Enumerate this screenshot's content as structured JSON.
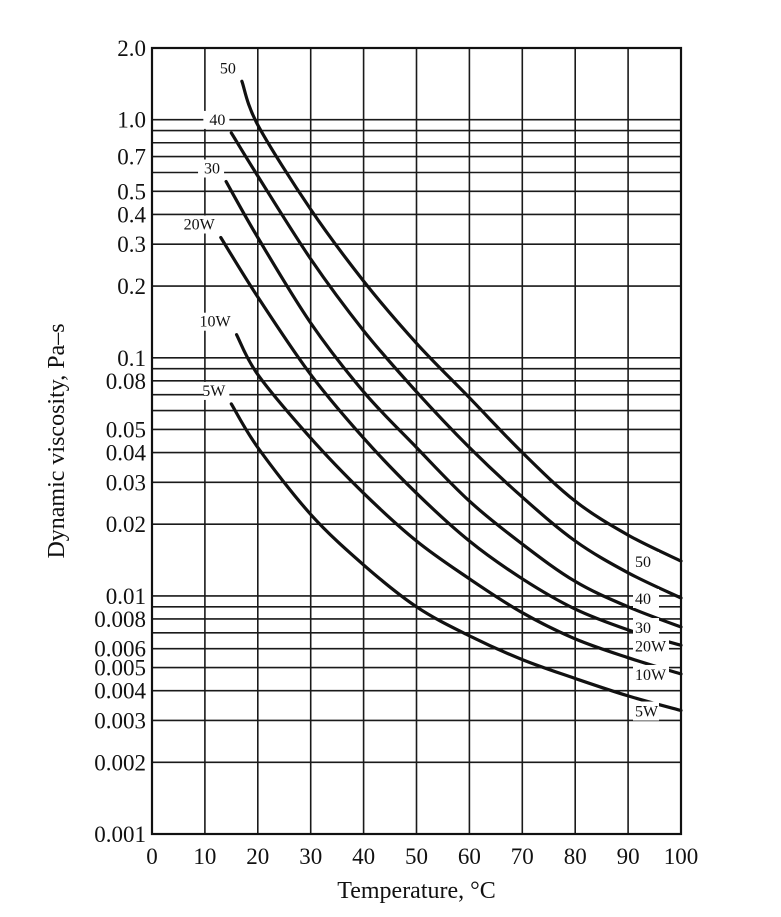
{
  "chart_data": {
    "type": "line",
    "title": "",
    "xlabel": "Temperature, °C",
    "ylabel": "Dynamic viscosity, Pa–s",
    "xlim": [
      0,
      100
    ],
    "ylim": [
      0.001,
      2.0
    ],
    "yscale": "log",
    "grid": true,
    "x_ticks": [
      "0",
      "10",
      "20",
      "30",
      "40",
      "50",
      "60",
      "70",
      "80",
      "90",
      "100"
    ],
    "y_ticks": [
      {
        "value": 2.0,
        "label": "2.0"
      },
      {
        "value": 1.0,
        "label": "1.0"
      },
      {
        "value": 0.7,
        "label": "0.7"
      },
      {
        "value": 0.5,
        "label": "0.5"
      },
      {
        "value": 0.4,
        "label": "0.4"
      },
      {
        "value": 0.3,
        "label": "0.3"
      },
      {
        "value": 0.2,
        "label": "0.2"
      },
      {
        "value": 0.1,
        "label": "0.1"
      },
      {
        "value": 0.08,
        "label": "0.08"
      },
      {
        "value": 0.05,
        "label": "0.05"
      },
      {
        "value": 0.04,
        "label": "0.04"
      },
      {
        "value": 0.03,
        "label": "0.03"
      },
      {
        "value": 0.02,
        "label": "0.02"
      },
      {
        "value": 0.01,
        "label": "0.01"
      },
      {
        "value": 0.008,
        "label": "0.008"
      },
      {
        "value": 0.006,
        "label": "0.006"
      },
      {
        "value": 0.005,
        "label": "0.005"
      },
      {
        "value": 0.004,
        "label": "0.004"
      },
      {
        "value": 0.003,
        "label": "0.003"
      },
      {
        "value": 0.002,
        "label": "0.002"
      },
      {
        "value": 0.001,
        "label": "0.001"
      }
    ],
    "extra_grid_y": [
      0.9,
      0.8,
      0.6,
      0.09,
      0.07,
      0.06,
      0.009,
      0.007
    ],
    "series": [
      {
        "name": "50",
        "start_label": "50",
        "end_label": "50",
        "x": [
          17,
          20,
          30,
          40,
          50,
          60,
          70,
          80,
          90,
          100
        ],
        "y": [
          1.45,
          0.95,
          0.42,
          0.21,
          0.115,
          0.068,
          0.04,
          0.025,
          0.018,
          0.014
        ]
      },
      {
        "name": "40",
        "start_label": "40",
        "end_label": "40",
        "x": [
          15,
          20,
          30,
          40,
          50,
          60,
          70,
          80,
          90,
          100
        ],
        "y": [
          0.88,
          0.58,
          0.26,
          0.13,
          0.072,
          0.042,
          0.026,
          0.017,
          0.0125,
          0.0098
        ]
      },
      {
        "name": "30",
        "start_label": "30",
        "end_label": "30",
        "x": [
          14,
          20,
          30,
          40,
          50,
          60,
          70,
          80,
          90,
          100
        ],
        "y": [
          0.55,
          0.32,
          0.14,
          0.072,
          0.042,
          0.025,
          0.0165,
          0.0115,
          0.009,
          0.0074
        ]
      },
      {
        "name": "20W",
        "start_label": "20W",
        "end_label": "20W",
        "x": [
          13,
          20,
          30,
          40,
          50,
          60,
          70,
          80,
          90,
          100
        ],
        "y": [
          0.32,
          0.18,
          0.085,
          0.046,
          0.027,
          0.017,
          0.0118,
          0.0088,
          0.0072,
          0.0062
        ]
      },
      {
        "name": "10W",
        "start_label": "10W",
        "end_label": "10W",
        "x": [
          16,
          20,
          30,
          40,
          50,
          60,
          70,
          80,
          90,
          100
        ],
        "y": [
          0.125,
          0.085,
          0.046,
          0.027,
          0.017,
          0.0118,
          0.0085,
          0.0066,
          0.0055,
          0.0047
        ]
      },
      {
        "name": "5W",
        "start_label": "5W",
        "end_label": "5W",
        "x": [
          15,
          20,
          30,
          40,
          50,
          60,
          70,
          80,
          90,
          100
        ],
        "y": [
          0.064,
          0.042,
          0.022,
          0.0135,
          0.009,
          0.0068,
          0.0054,
          0.0045,
          0.0038,
          0.0033
        ]
      }
    ]
  }
}
